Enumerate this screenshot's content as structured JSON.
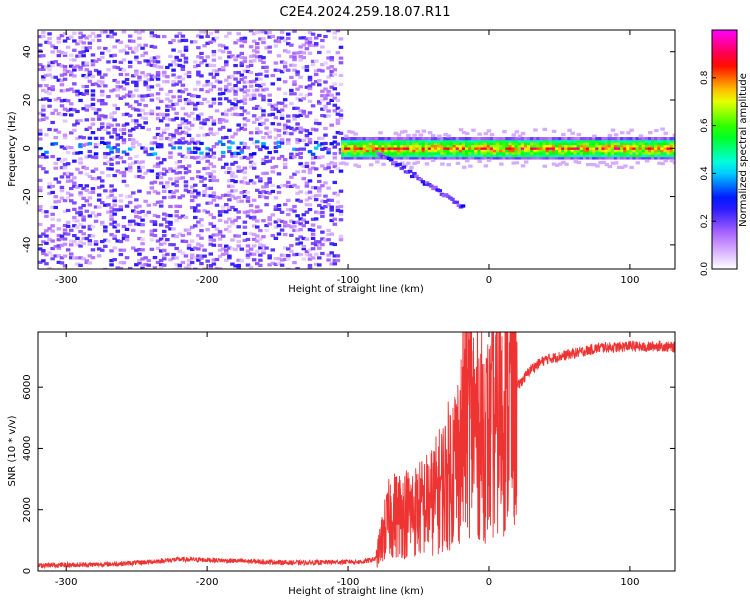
{
  "title": "C2E4.2024.259.18.07.R11",
  "chart_data": [
    {
      "type": "heatmap",
      "xlabel": "Height of straight line (km)",
      "ylabel": "Frequency (Hz)",
      "xlim": [
        -320,
        132
      ],
      "ylim": [
        -50,
        49
      ],
      "xticks": [
        -300,
        -200,
        -100,
        0,
        100
      ],
      "yticks": [
        -40,
        -20,
        0,
        20,
        40
      ],
      "colorbar": {
        "label": "Normalized spectral amplitude",
        "range": [
          0,
          1
        ],
        "ticks": [
          0.0,
          0.2,
          0.4,
          0.6,
          0.8
        ],
        "colormap": [
          "#ffffff",
          "#b36bff",
          "#0000ff",
          "#00ffff",
          "#00ff00",
          "#ffff00",
          "#ff0000",
          "#ff00ff"
        ]
      },
      "regions": [
        {
          "x": [
            -320,
            -105
          ],
          "description_values": "sparse speckle 0.05-0.25 across all frequencies, band near 0 Hz up to 0.4"
        },
        {
          "x": [
            -105,
            132
          ],
          "band_center_hz": 0,
          "band_halfwidth_hz": 3,
          "amplitude_range": [
            0.4,
            0.95
          ]
        }
      ],
      "features": [
        {
          "x": [
            -80,
            -20
          ],
          "y": [
            -2,
            -24
          ],
          "amplitude": 0.2
        }
      ]
    },
    {
      "type": "line",
      "xlabel": "Height of straight line (km)",
      "ylabel": "SNR (10 * v/v)",
      "xlim": [
        -320,
        132
      ],
      "ylim": [
        0,
        7800
      ],
      "xticks": [
        -300,
        -200,
        -100,
        0,
        100
      ],
      "yticks": [
        0,
        2000,
        4000,
        6000
      ],
      "color": "#ee3333",
      "series": [
        {
          "x": [
            -320,
            -300,
            -280,
            -260,
            -240,
            -220,
            -200,
            -180,
            -160,
            -140,
            -120,
            -100,
            -90,
            -80,
            -75,
            -70,
            -60,
            -50,
            -40,
            -30,
            -20,
            -15,
            -10,
            0,
            10,
            20,
            30,
            40,
            50,
            60,
            70,
            80,
            90,
            100,
            110,
            120,
            132
          ],
          "values": [
            180,
            200,
            210,
            240,
            300,
            380,
            360,
            330,
            300,
            270,
            280,
            300,
            300,
            400,
            1200,
            1800,
            1900,
            2000,
            2300,
            3000,
            4000,
            5500,
            4800,
            4300,
            5200,
            6000,
            6600,
            6900,
            7000,
            7100,
            7200,
            7300,
            7300,
            7350,
            7300,
            7350,
            7300
          ]
        }
      ]
    }
  ]
}
